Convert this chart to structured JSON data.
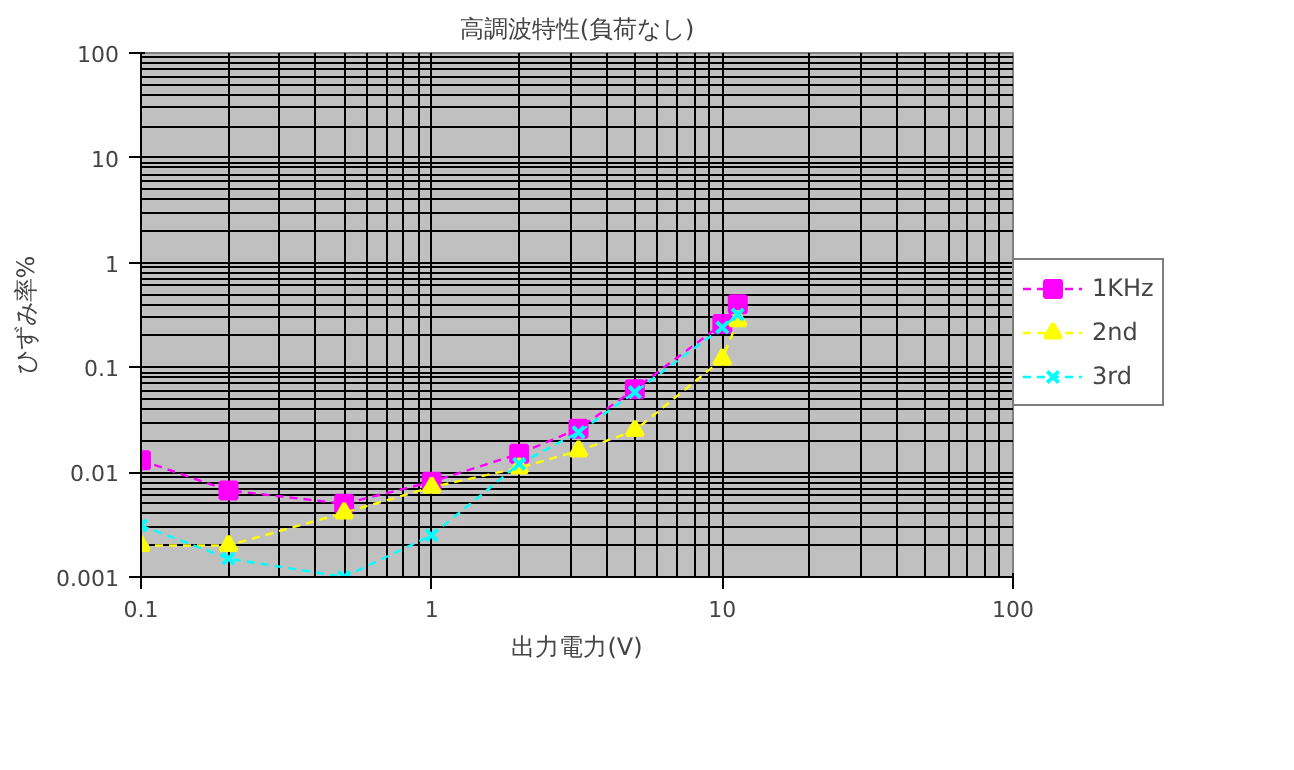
{
  "chart_data": {
    "type": "line",
    "title": "高調波特性(負荷なし)",
    "xlabel": "出力電力(V)",
    "ylabel": "ひずみ率%",
    "log": "xy",
    "xlim": [
      0.1,
      100
    ],
    "ylim": [
      0.001,
      100
    ],
    "xticks": [
      0.1,
      1,
      10,
      100
    ],
    "yticks": [
      0.001,
      0.01,
      0.1,
      1,
      10,
      100
    ],
    "grid": true,
    "legend": "right",
    "line_style": "dashed",
    "series": [
      {
        "name": "1KHz",
        "color": "#ff00ff",
        "marker": "square",
        "x": [
          0.1,
          0.2,
          0.5,
          1,
          2,
          3.2,
          5,
          10,
          11.3
        ],
        "values": [
          0.013,
          0.0067,
          0.005,
          0.0081,
          0.015,
          0.026,
          0.062,
          0.26,
          0.4
        ]
      },
      {
        "name": "2nd",
        "color": "#ffff00",
        "marker": "triangle",
        "x": [
          0.1,
          0.2,
          0.5,
          1,
          2,
          3.2,
          5,
          10,
          11.3
        ],
        "values": [
          0.002,
          0.002,
          0.0041,
          0.0072,
          0.011,
          0.016,
          0.025,
          0.12,
          0.28
        ]
      },
      {
        "name": "3rd",
        "color": "#00ffff",
        "marker": "cross",
        "x": [
          0.1,
          0.2,
          0.5,
          1,
          2,
          3.2,
          5,
          10,
          11.3
        ],
        "values": [
          0.0031,
          0.0015,
          0.001,
          0.0025,
          0.012,
          0.024,
          0.058,
          0.24,
          0.32
        ]
      }
    ]
  }
}
